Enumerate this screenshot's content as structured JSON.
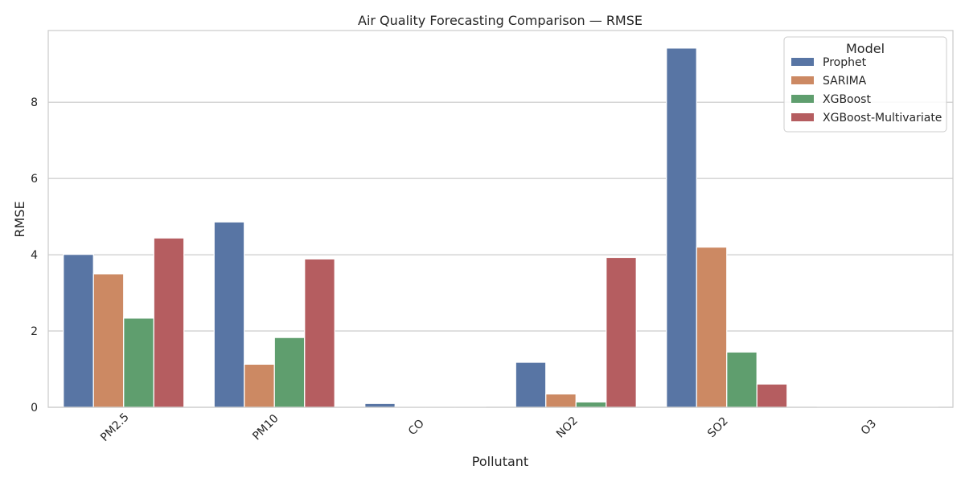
{
  "chart_data": {
    "type": "bar",
    "title": "Air Quality Forecasting Comparison — RMSE",
    "xlabel": "Pollutant",
    "ylabel": "RMSE",
    "categories": [
      "PM2.5",
      "PM10",
      "CO",
      "NO2",
      "SO2",
      "O3"
    ],
    "ylim": [
      0,
      9.88
    ],
    "yticks": [
      0,
      2,
      4,
      6,
      8
    ],
    "grid": true,
    "legend_title": "Model",
    "legend_position": "top-right",
    "series": [
      {
        "name": "Prophet",
        "color": "#5875a4",
        "values": [
          4.01,
          4.86,
          0.1,
          1.18,
          9.42,
          0.01
        ]
      },
      {
        "name": "SARIMA",
        "color": "#cc8963",
        "values": [
          3.5,
          1.13,
          0.01,
          0.35,
          4.2,
          0.01
        ]
      },
      {
        "name": "XGBoost",
        "color": "#5f9e6e",
        "values": [
          2.34,
          1.83,
          0.02,
          0.14,
          1.45,
          0.01
        ]
      },
      {
        "name": "XGBoost-Multivariate",
        "color": "#b55d60",
        "values": [
          4.44,
          3.89,
          0.02,
          3.93,
          0.61,
          0.01
        ]
      }
    ]
  }
}
